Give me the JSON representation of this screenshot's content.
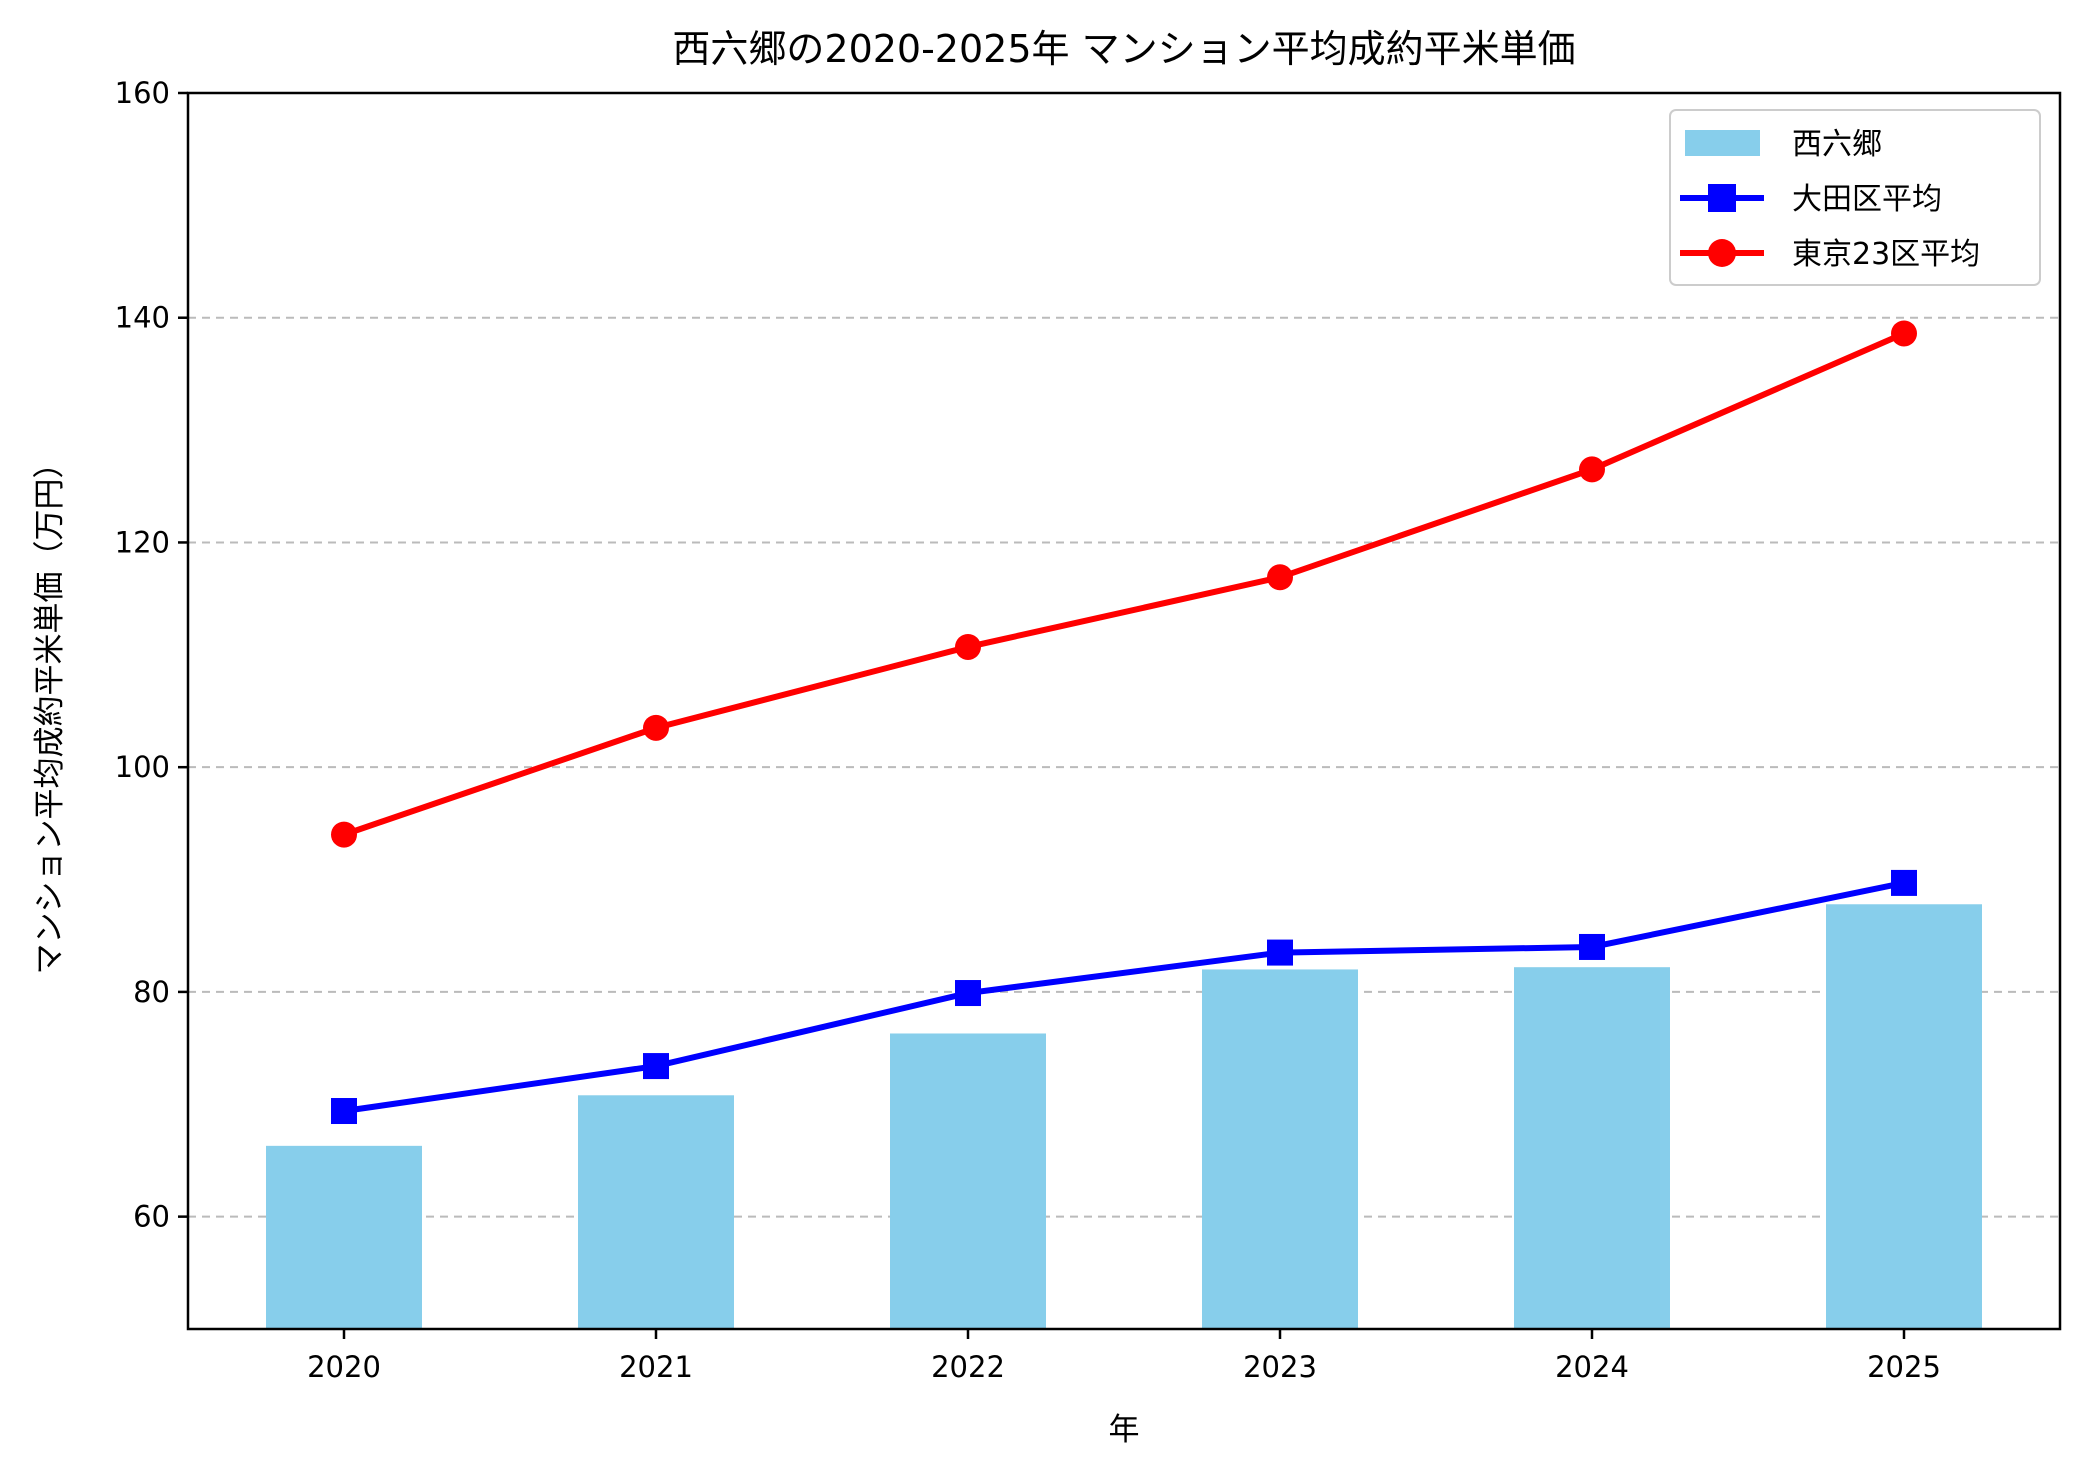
{
  "chart_data": {
    "type": "bar",
    "title": "西六郷の2020-2025年 マンション平均成約平米単価",
    "xlabel": "年",
    "ylabel": "マンション平均成約平米単価（万円）",
    "categories": [
      "2020",
      "2021",
      "2022",
      "2023",
      "2024",
      "2025"
    ],
    "ylim": [
      50,
      160
    ],
    "yticks": [
      60,
      80,
      100,
      120,
      140,
      160
    ],
    "grid": "y-dashed",
    "legend_placement": "upper right",
    "series": [
      {
        "name": "西六郷",
        "kind": "bar",
        "color": "#87CEEB",
        "values": [
          66.3,
          70.8,
          76.3,
          82.0,
          82.2,
          87.8
        ]
      },
      {
        "name": "大田区平均",
        "kind": "line",
        "marker": "square",
        "color": "#0000FF",
        "values": [
          69.4,
          73.4,
          79.9,
          83.5,
          84.0,
          89.7
        ]
      },
      {
        "name": "東京23区平均",
        "kind": "line",
        "marker": "circle",
        "color": "#FF0000",
        "values": [
          94.0,
          103.5,
          110.7,
          116.9,
          126.5,
          138.6
        ]
      }
    ]
  }
}
